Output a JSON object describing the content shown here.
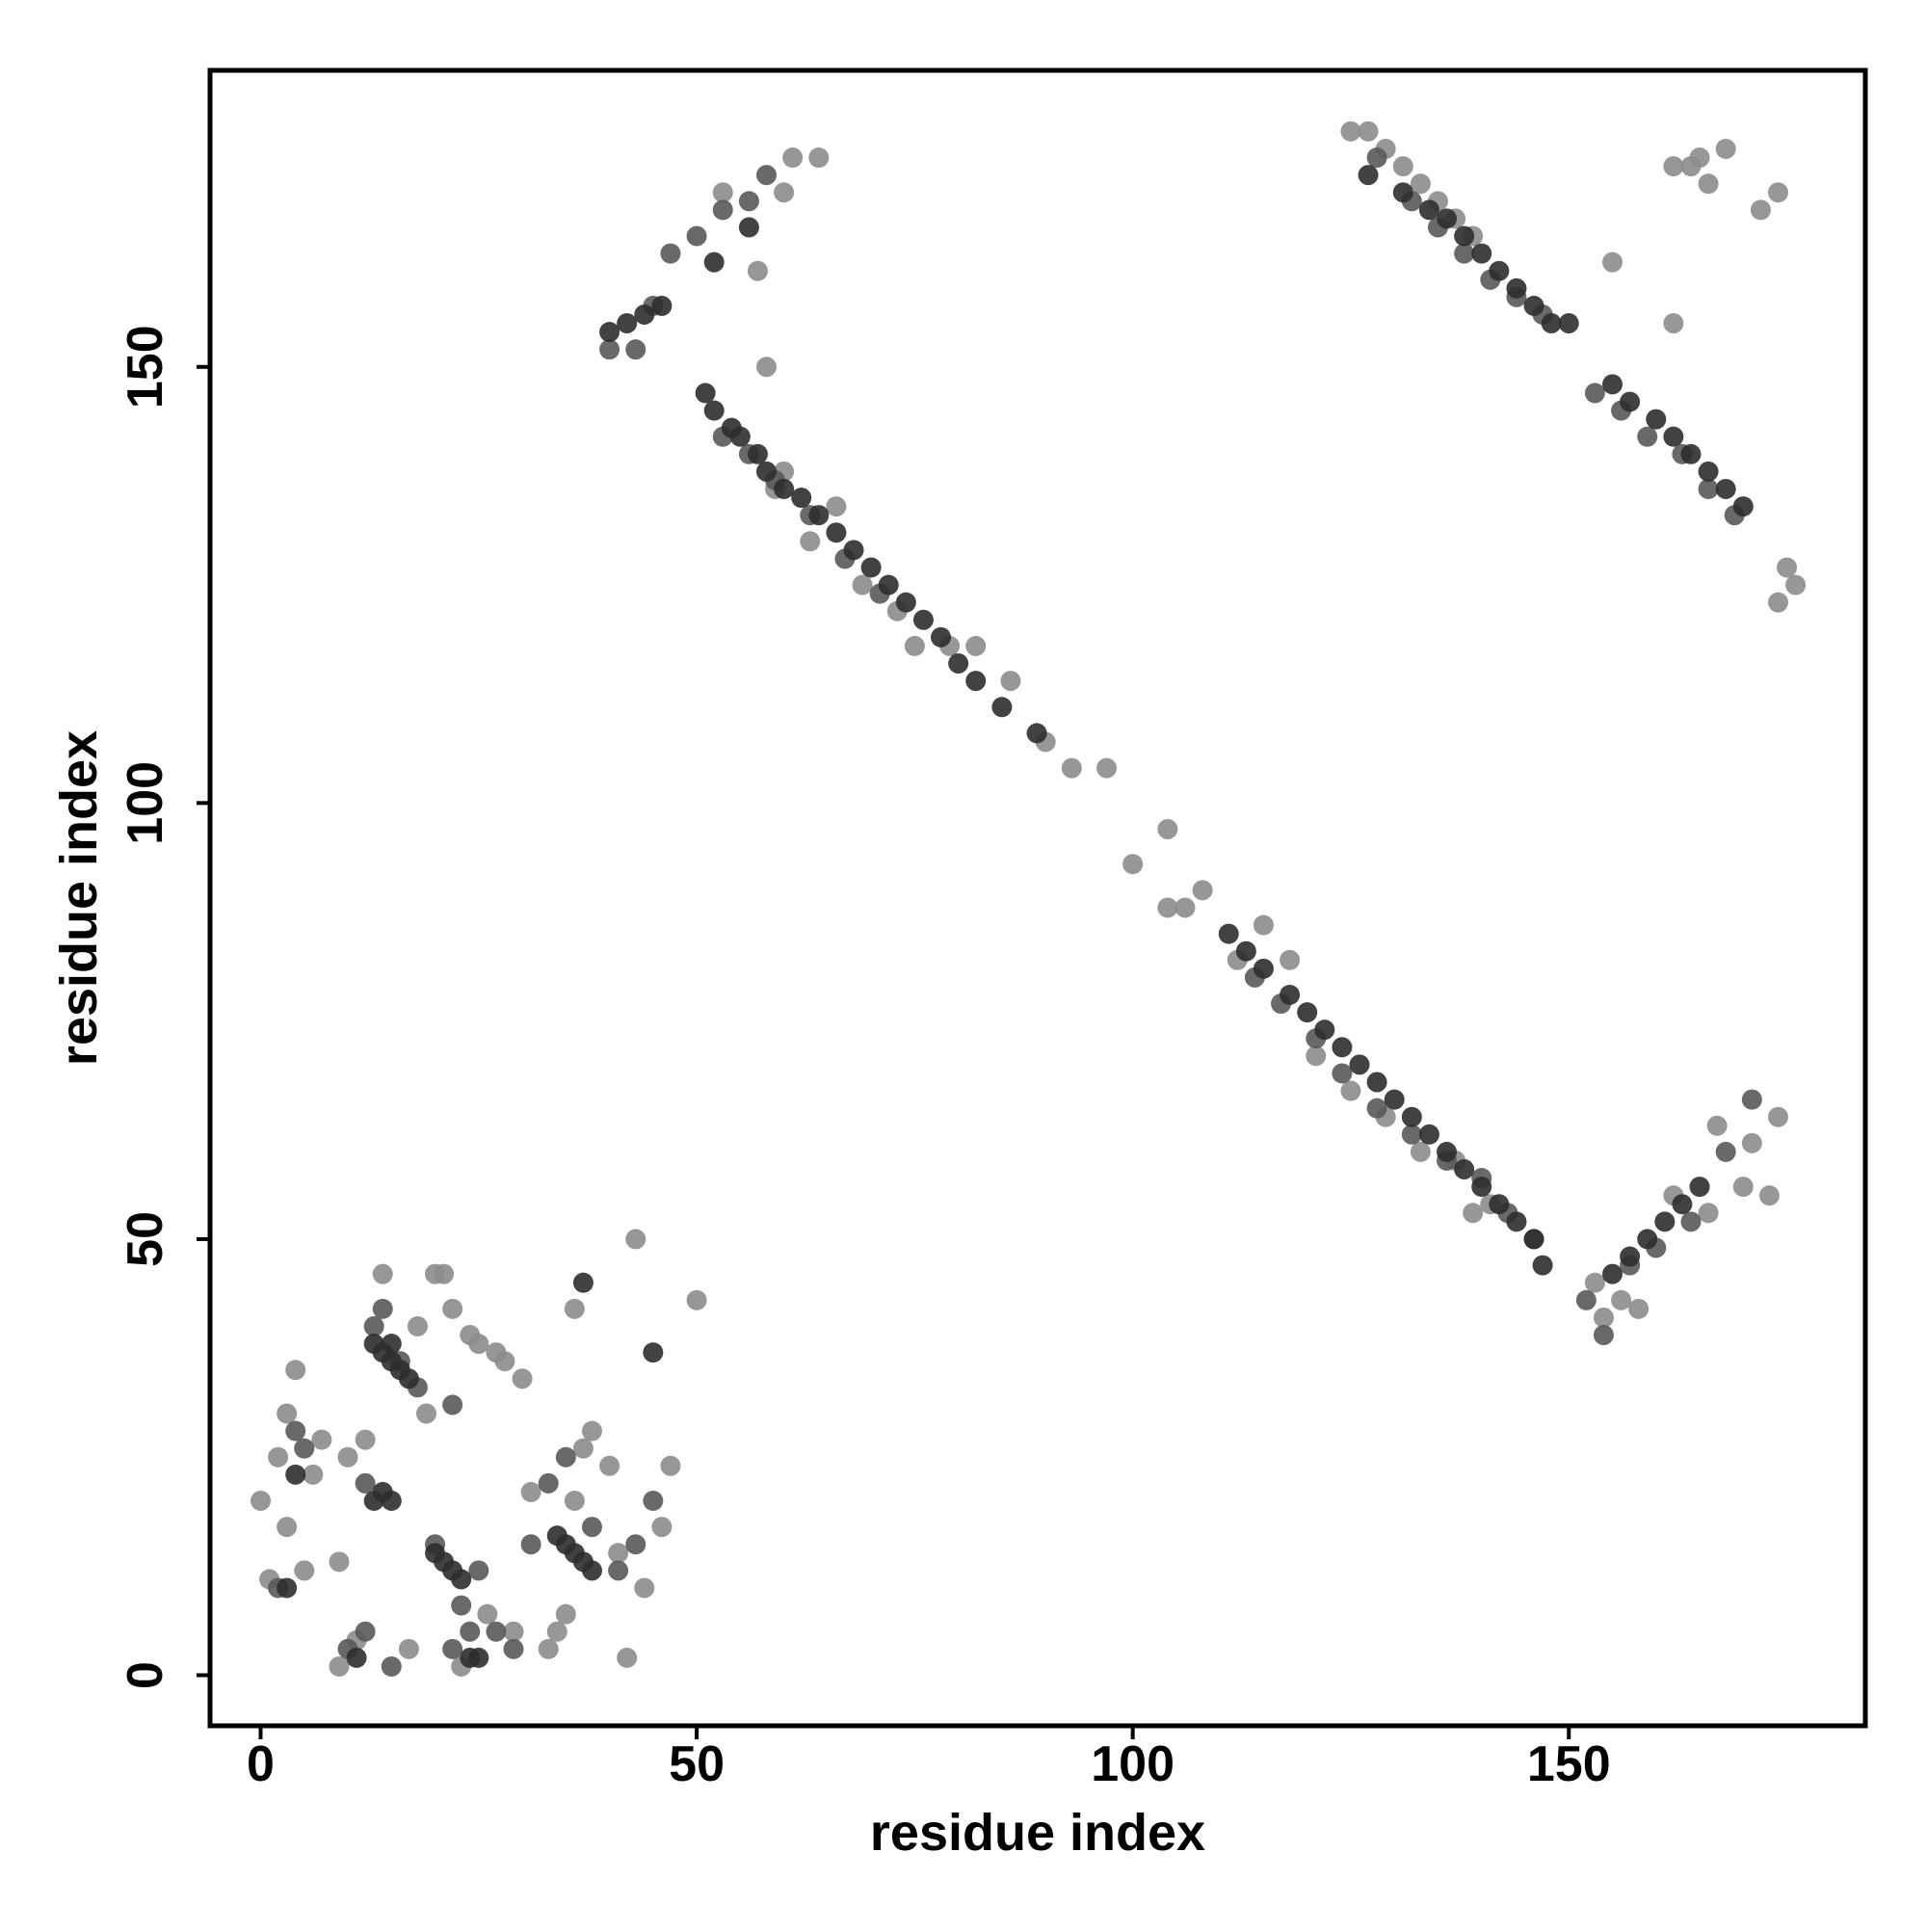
{
  "chart_data": {
    "type": "scatter",
    "x_label": "residue index",
    "y_label": "residue index",
    "xlim": [
      -5.8,
      184
    ],
    "ylim": [
      -5.8,
      184
    ],
    "xticks": [
      0,
      50,
      100,
      150
    ],
    "yticks": [
      0,
      50,
      100,
      150
    ],
    "grid": false,
    "series": [
      {
        "color": "#8c8c8c",
        "x": [
          61,
          64,
          60,
          53,
          57,
          58,
          60,
          63,
          59,
          66,
          69,
          73,
          75,
          79,
          82,
          86,
          90,
          93,
          97,
          100,
          104,
          104,
          106,
          108,
          112,
          115,
          118,
          121,
          125,
          129,
          133,
          137,
          139,
          141,
          153,
          154,
          156,
          158,
          162,
          166,
          170,
          173,
          174,
          125,
          127,
          129,
          131,
          133,
          135,
          137,
          139,
          162,
          164,
          166,
          168,
          172,
          174,
          165,
          155,
          162,
          167,
          171,
          175,
          176,
          174,
          0,
          1,
          2,
          3,
          4,
          5,
          6,
          7,
          9,
          10,
          11,
          12,
          18,
          19,
          20,
          21,
          22,
          24,
          25,
          26,
          27,
          28,
          30,
          33,
          34,
          35,
          36,
          38,
          40,
          42,
          43,
          44,
          46,
          47,
          50,
          36,
          31,
          17,
          9,
          23,
          29,
          3,
          14,
          41,
          37
        ],
        "values": [
          174,
          174,
          170,
          170,
          161,
          150,
          138,
          130,
          136,
          134,
          125,
          122,
          118,
          118,
          118,
          114,
          107,
          104,
          104,
          93,
          97,
          88,
          88,
          90,
          82,
          86,
          82,
          71,
          67,
          64,
          60,
          59,
          53,
          54,
          45,
          41,
          43,
          42,
          55,
          53,
          56,
          55,
          64,
          177,
          177,
          175,
          173,
          171,
          169,
          167,
          165,
          173,
          173,
          171,
          175,
          168,
          170,
          174,
          162,
          155,
          63,
          61,
          127,
          125,
          123,
          20,
          11,
          25,
          30,
          35,
          12,
          23,
          27,
          13,
          25,
          4,
          27,
          40,
          30,
          46,
          46,
          42,
          39,
          38,
          7,
          37,
          36,
          34,
          3,
          5,
          7,
          20,
          28,
          24,
          2,
          50,
          10,
          17,
          24,
          43,
          42,
          21,
          3,
          1,
          1,
          5,
          17,
          46,
          14,
          26
        ]
      },
      {
        "color": "#595959",
        "x": [
          4,
          2,
          5,
          12,
          13,
          14,
          16,
          18,
          22,
          20,
          23,
          25,
          27,
          29,
          31,
          33,
          35,
          38,
          41,
          43,
          45,
          10,
          12,
          15,
          22,
          24,
          40,
          43,
          45,
          47,
          50,
          53,
          56,
          58,
          53,
          56,
          59,
          63,
          67,
          71,
          114,
          117,
          121,
          124,
          128,
          132,
          136,
          140,
          143,
          146,
          128,
          132,
          135,
          138,
          141,
          144,
          147,
          153,
          156,
          159,
          163,
          166,
          169,
          152,
          154,
          157,
          160,
          164,
          168,
          171
        ],
        "values": [
          28,
          10,
          26,
          22,
          40,
          42,
          36,
          33,
          31,
          15,
          8,
          12,
          5,
          3,
          15,
          22,
          25,
          17,
          12,
          15,
          20,
          3,
          5,
          1,
          3,
          5,
          152,
          152,
          157,
          163,
          165,
          168,
          169,
          172,
          142,
          140,
          137,
          133,
          128,
          124,
          80,
          77,
          73,
          69,
          65,
          62,
          59,
          57,
          53,
          50,
          174,
          169,
          166,
          163,
          160,
          158,
          156,
          147,
          145,
          142,
          140,
          136,
          133,
          43,
          39,
          47,
          49,
          52,
          60,
          66
        ]
      },
      {
        "color": "#2e2e2e",
        "x": [
          51,
          52,
          54,
          55,
          57,
          58,
          60,
          62,
          64,
          66,
          68,
          70,
          72,
          74,
          76,
          78,
          80,
          82,
          85,
          89,
          111,
          113,
          115,
          118,
          120,
          122,
          124,
          126,
          128,
          130,
          132,
          134,
          136,
          138,
          140,
          142,
          144,
          146,
          147,
          127,
          131,
          134,
          136,
          138,
          140,
          142,
          144,
          146,
          148,
          150,
          155,
          157,
          160,
          162,
          164,
          166,
          168,
          170,
          155,
          157,
          159,
          161,
          163,
          165,
          40,
          42,
          44,
          46,
          52,
          56,
          3,
          4,
          13,
          14,
          15,
          16,
          17,
          14,
          15,
          20,
          21,
          22,
          23,
          34,
          35,
          36,
          37,
          38,
          25,
          37,
          45,
          11,
          24,
          13,
          15
        ],
        "values": [
          147,
          145,
          143,
          142,
          140,
          138,
          136,
          135,
          133,
          131,
          129,
          127,
          125,
          123,
          121,
          119,
          116,
          114,
          111,
          108,
          85,
          83,
          81,
          78,
          76,
          74,
          72,
          70,
          68,
          66,
          64,
          62,
          60,
          58,
          56,
          54,
          52,
          50,
          47,
          172,
          170,
          168,
          167,
          165,
          163,
          161,
          159,
          157,
          155,
          155,
          148,
          146,
          144,
          142,
          140,
          138,
          136,
          134,
          46,
          48,
          50,
          52,
          54,
          56,
          154,
          155,
          156,
          157,
          162,
          166,
          10,
          23,
          38,
          37,
          36,
          35,
          34,
          21,
          20,
          14,
          13,
          12,
          11,
          16,
          15,
          14,
          13,
          12,
          2,
          45,
          37,
          2,
          2,
          20,
          38
        ]
      }
    ]
  }
}
